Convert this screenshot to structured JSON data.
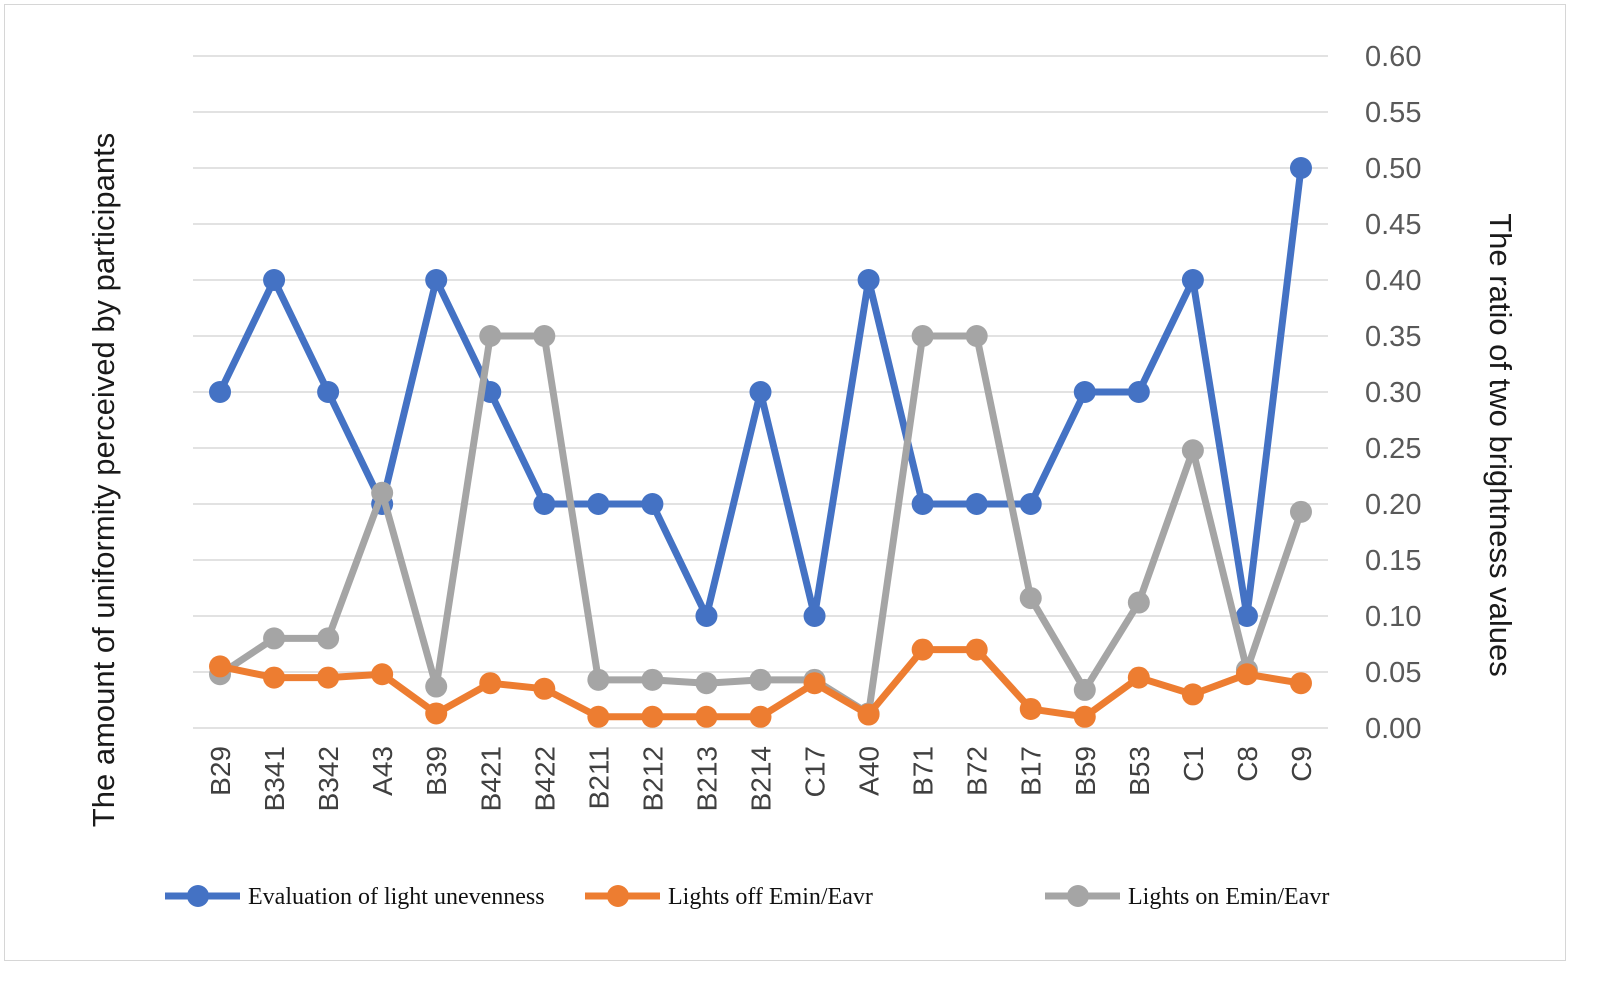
{
  "chart_data": {
    "type": "line",
    "title": "",
    "xlabel": "",
    "ylabel": "The amount of uniformity perceived by participants",
    "y2label": "The ratio of two brightness values",
    "ylim": [
      0,
      0.6
    ],
    "yticks": [
      "0.00",
      "0.05",
      "0.10",
      "0.15",
      "0.20",
      "0.25",
      "0.30",
      "0.35",
      "0.40",
      "0.45",
      "0.50",
      "0.55",
      "0.60"
    ],
    "grid": true,
    "legend_position": "bottom",
    "categories": [
      "B29",
      "B341",
      "B342",
      "A43",
      "B39",
      "B421",
      "B422",
      "B211",
      "B212",
      "B213",
      "B214",
      "C17",
      "A40",
      "B71",
      "B72",
      "B17",
      "B59",
      "B53",
      "C1",
      "C8",
      "C9"
    ],
    "series": [
      {
        "name": "Evaluation of light unevenness",
        "color": "#4472C4",
        "values": [
          0.3,
          0.4,
          0.3,
          0.2,
          0.4,
          0.3,
          0.2,
          0.2,
          0.2,
          0.1,
          0.3,
          0.1,
          0.4,
          0.2,
          0.2,
          0.2,
          0.3,
          0.3,
          0.4,
          0.1,
          0.5
        ]
      },
      {
        "name": "Lights off  Emin/Eavr",
        "color": "#ED7D31",
        "values": [
          0.055,
          0.045,
          0.045,
          0.048,
          0.013,
          0.04,
          0.035,
          0.01,
          0.01,
          0.01,
          0.01,
          0.04,
          0.012,
          0.07,
          0.07,
          0.017,
          0.01,
          0.045,
          0.03,
          0.048,
          0.04
        ]
      },
      {
        "name": "Lights on  Emin/Eavr",
        "color": "#A5A5A5",
        "values": [
          0.048,
          0.08,
          0.08,
          0.21,
          0.037,
          0.35,
          0.35,
          0.043,
          0.043,
          0.04,
          0.043,
          0.043,
          0.013,
          0.35,
          0.35,
          0.116,
          0.034,
          0.112,
          0.248,
          0.052,
          0.193
        ]
      }
    ]
  }
}
